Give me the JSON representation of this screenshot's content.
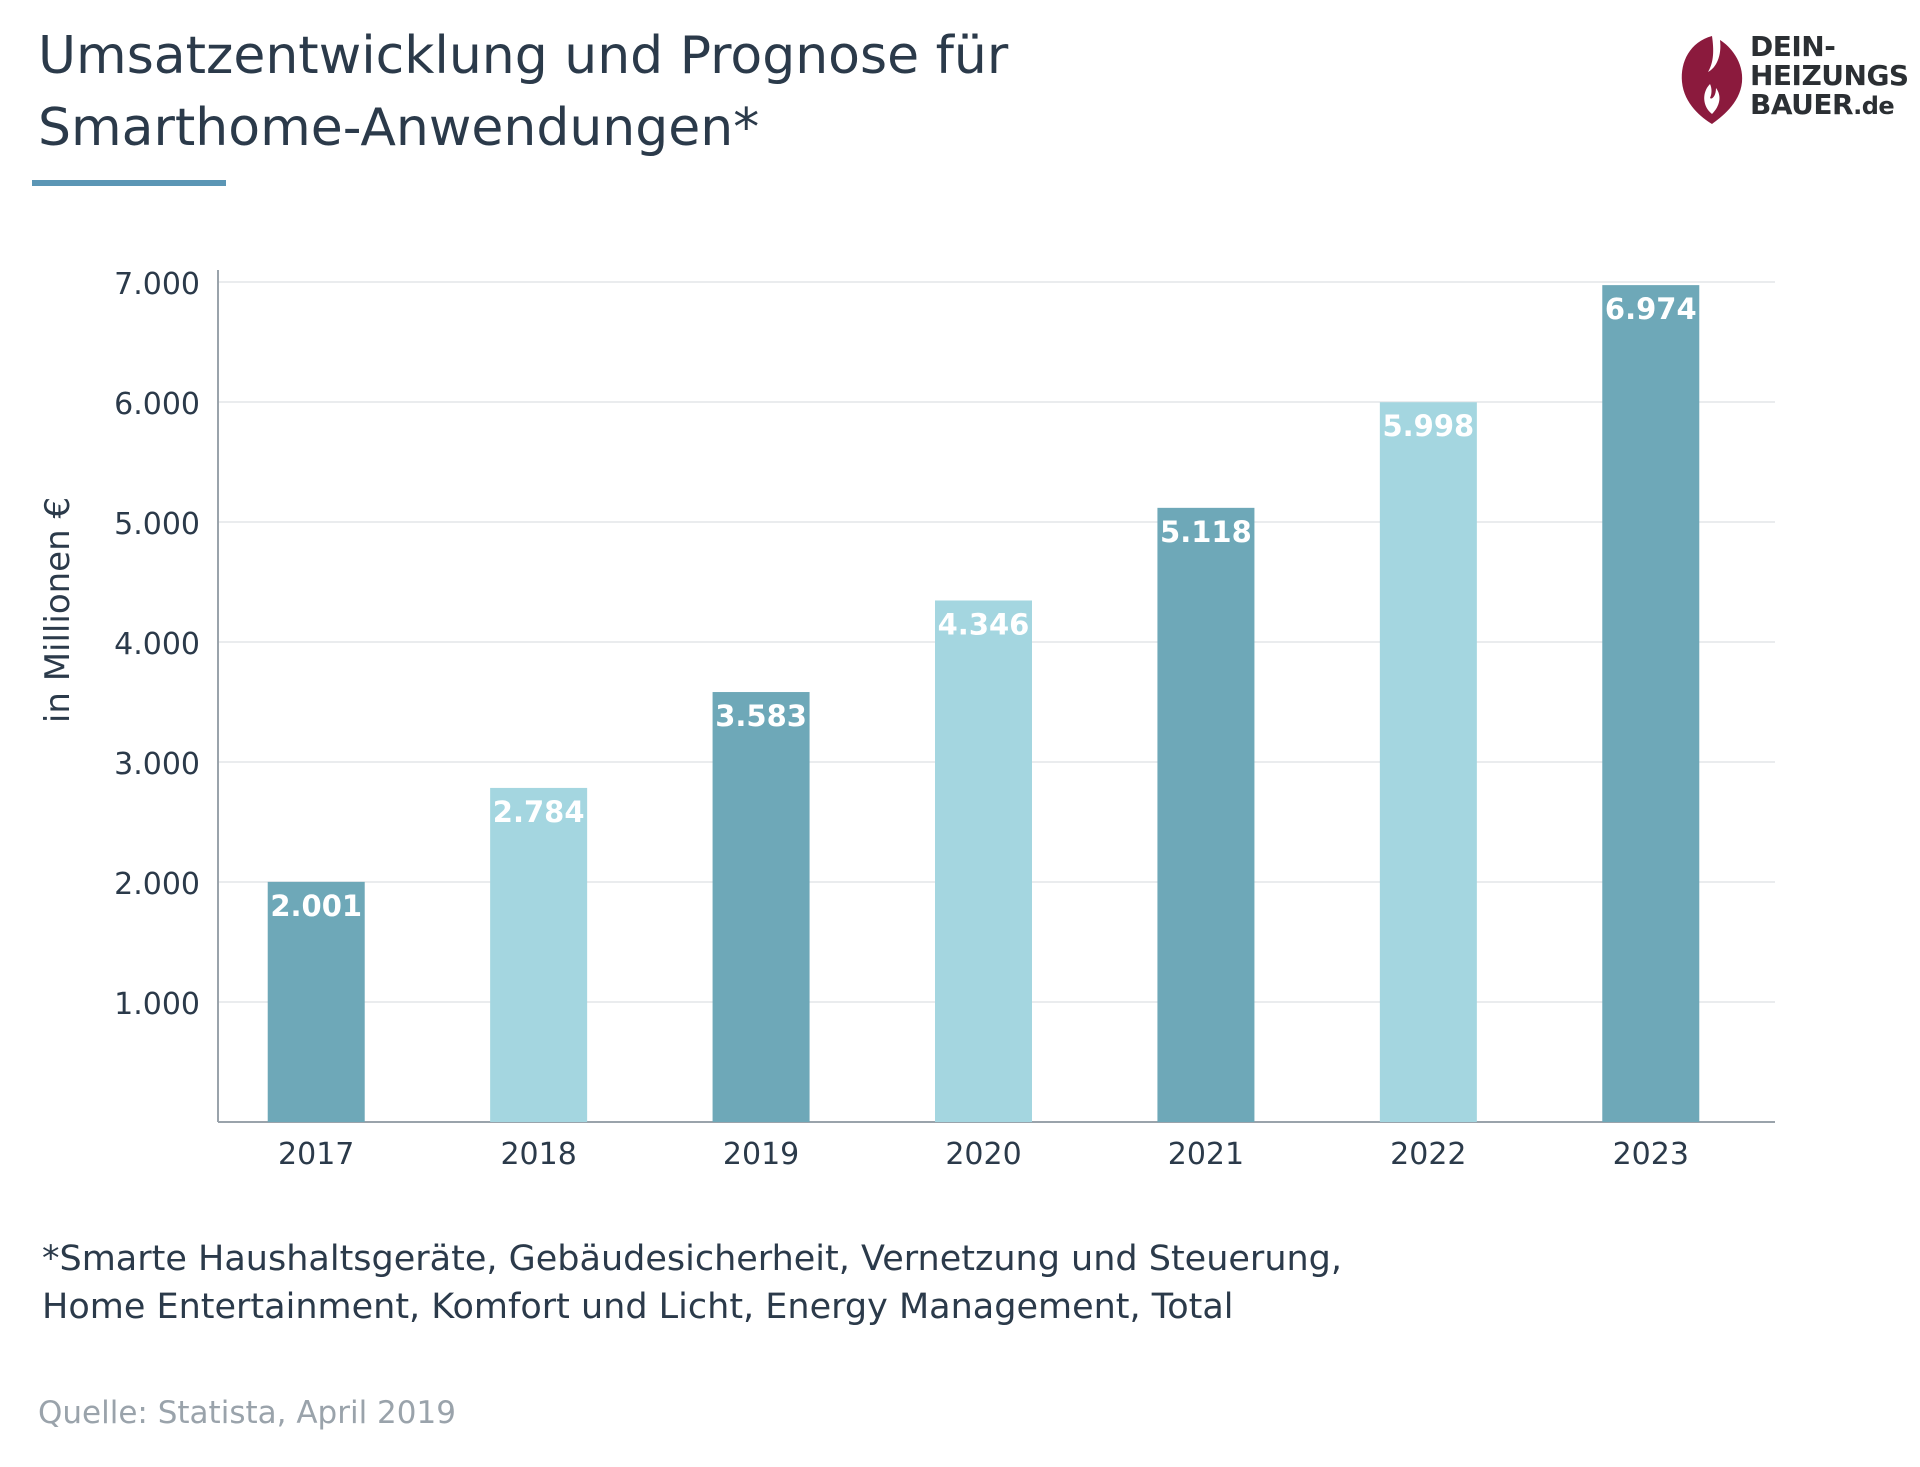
{
  "title": {
    "line1": "Umsatzentwicklung und Prognose für",
    "line2": "Smarthome-Anwendungen*"
  },
  "logo": {
    "line1": "DEIN-",
    "line2": "HEIZUNGS",
    "line3": "BAUER",
    "suffix": ".de",
    "icon": "flame-icon",
    "color": "#8b1a3d"
  },
  "footnote": {
    "line1": "*Smarte Haushaltsgeräte, Gebäudesicherheit, Vernetzung und Steuerung,",
    "line2": "Home Entertainment, Komfort und Licht, Energy Management, Total"
  },
  "source": "Quelle: Statista, April 2019",
  "colors": {
    "dark_bar": "#6ea8b8",
    "light_bar": "#a4d6e0",
    "accent": "#5b96b5"
  },
  "chart_data": {
    "type": "bar",
    "categories": [
      "2017",
      "2018",
      "2019",
      "2020",
      "2021",
      "2022",
      "2023"
    ],
    "values": [
      2001,
      2784,
      3583,
      4346,
      5118,
      5998,
      6974
    ],
    "value_labels": [
      "2.001",
      "2.784",
      "3.583",
      "4.346",
      "5.118",
      "5.998",
      "6.974"
    ],
    "ylabel": "in Millionen €",
    "xlabel": "",
    "ylim": [
      0,
      7000
    ],
    "yticks": [
      1000,
      2000,
      3000,
      4000,
      5000,
      6000,
      7000
    ],
    "ytick_labels": [
      "1.000",
      "2.000",
      "3.000",
      "4.000",
      "5.000",
      "6.000",
      "7.000"
    ],
    "grid": true,
    "bar_colors": [
      "dark",
      "light",
      "dark",
      "light",
      "dark",
      "light",
      "dark"
    ]
  }
}
